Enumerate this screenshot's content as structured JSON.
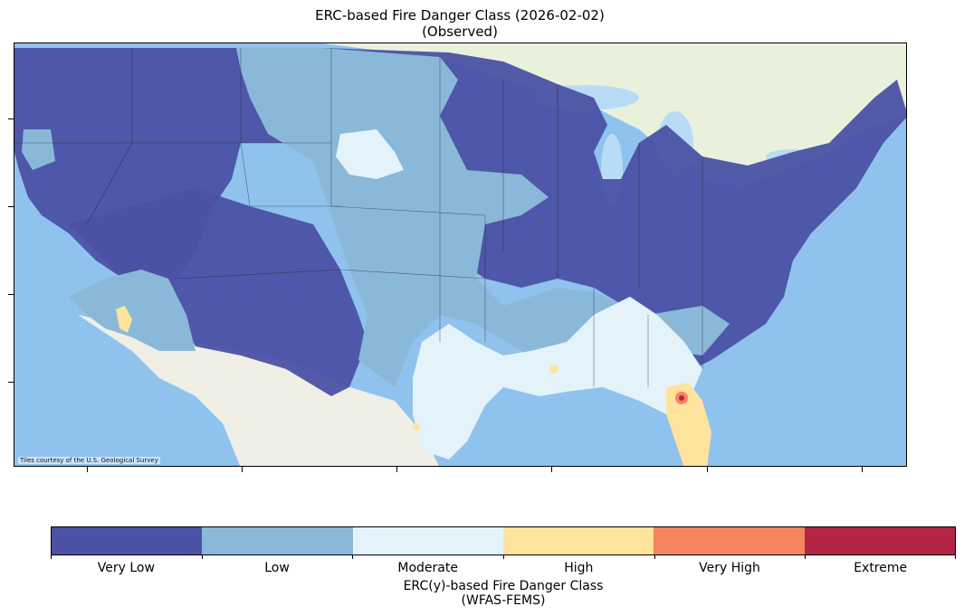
{
  "title": {
    "line1": "ERC-based Fire Danger Class (2026-02-02)",
    "line2": "(Observed)"
  },
  "map": {
    "attribution": "Tiles courtesy of the U.S. Geological Survey",
    "ocean_color": "#8fc3ee",
    "land_color": "#efefe6",
    "canada_color": "#e9f1dc",
    "lake_color": "#b9dcf6"
  },
  "legend": {
    "title_line1": "ERC(y)-based Fire Danger Class",
    "title_line2": "(WFAS-FEMS)",
    "classes": [
      {
        "label": "Very Low",
        "color": "#4b51a4"
      },
      {
        "label": "Low",
        "color": "#8ab8d8"
      },
      {
        "label": "Moderate",
        "color": "#e3f3f9"
      },
      {
        "label": "High",
        "color": "#fee39c"
      },
      {
        "label": "Very High",
        "color": "#f5845f"
      },
      {
        "label": "Extreme",
        "color": "#b32445"
      }
    ]
  }
}
